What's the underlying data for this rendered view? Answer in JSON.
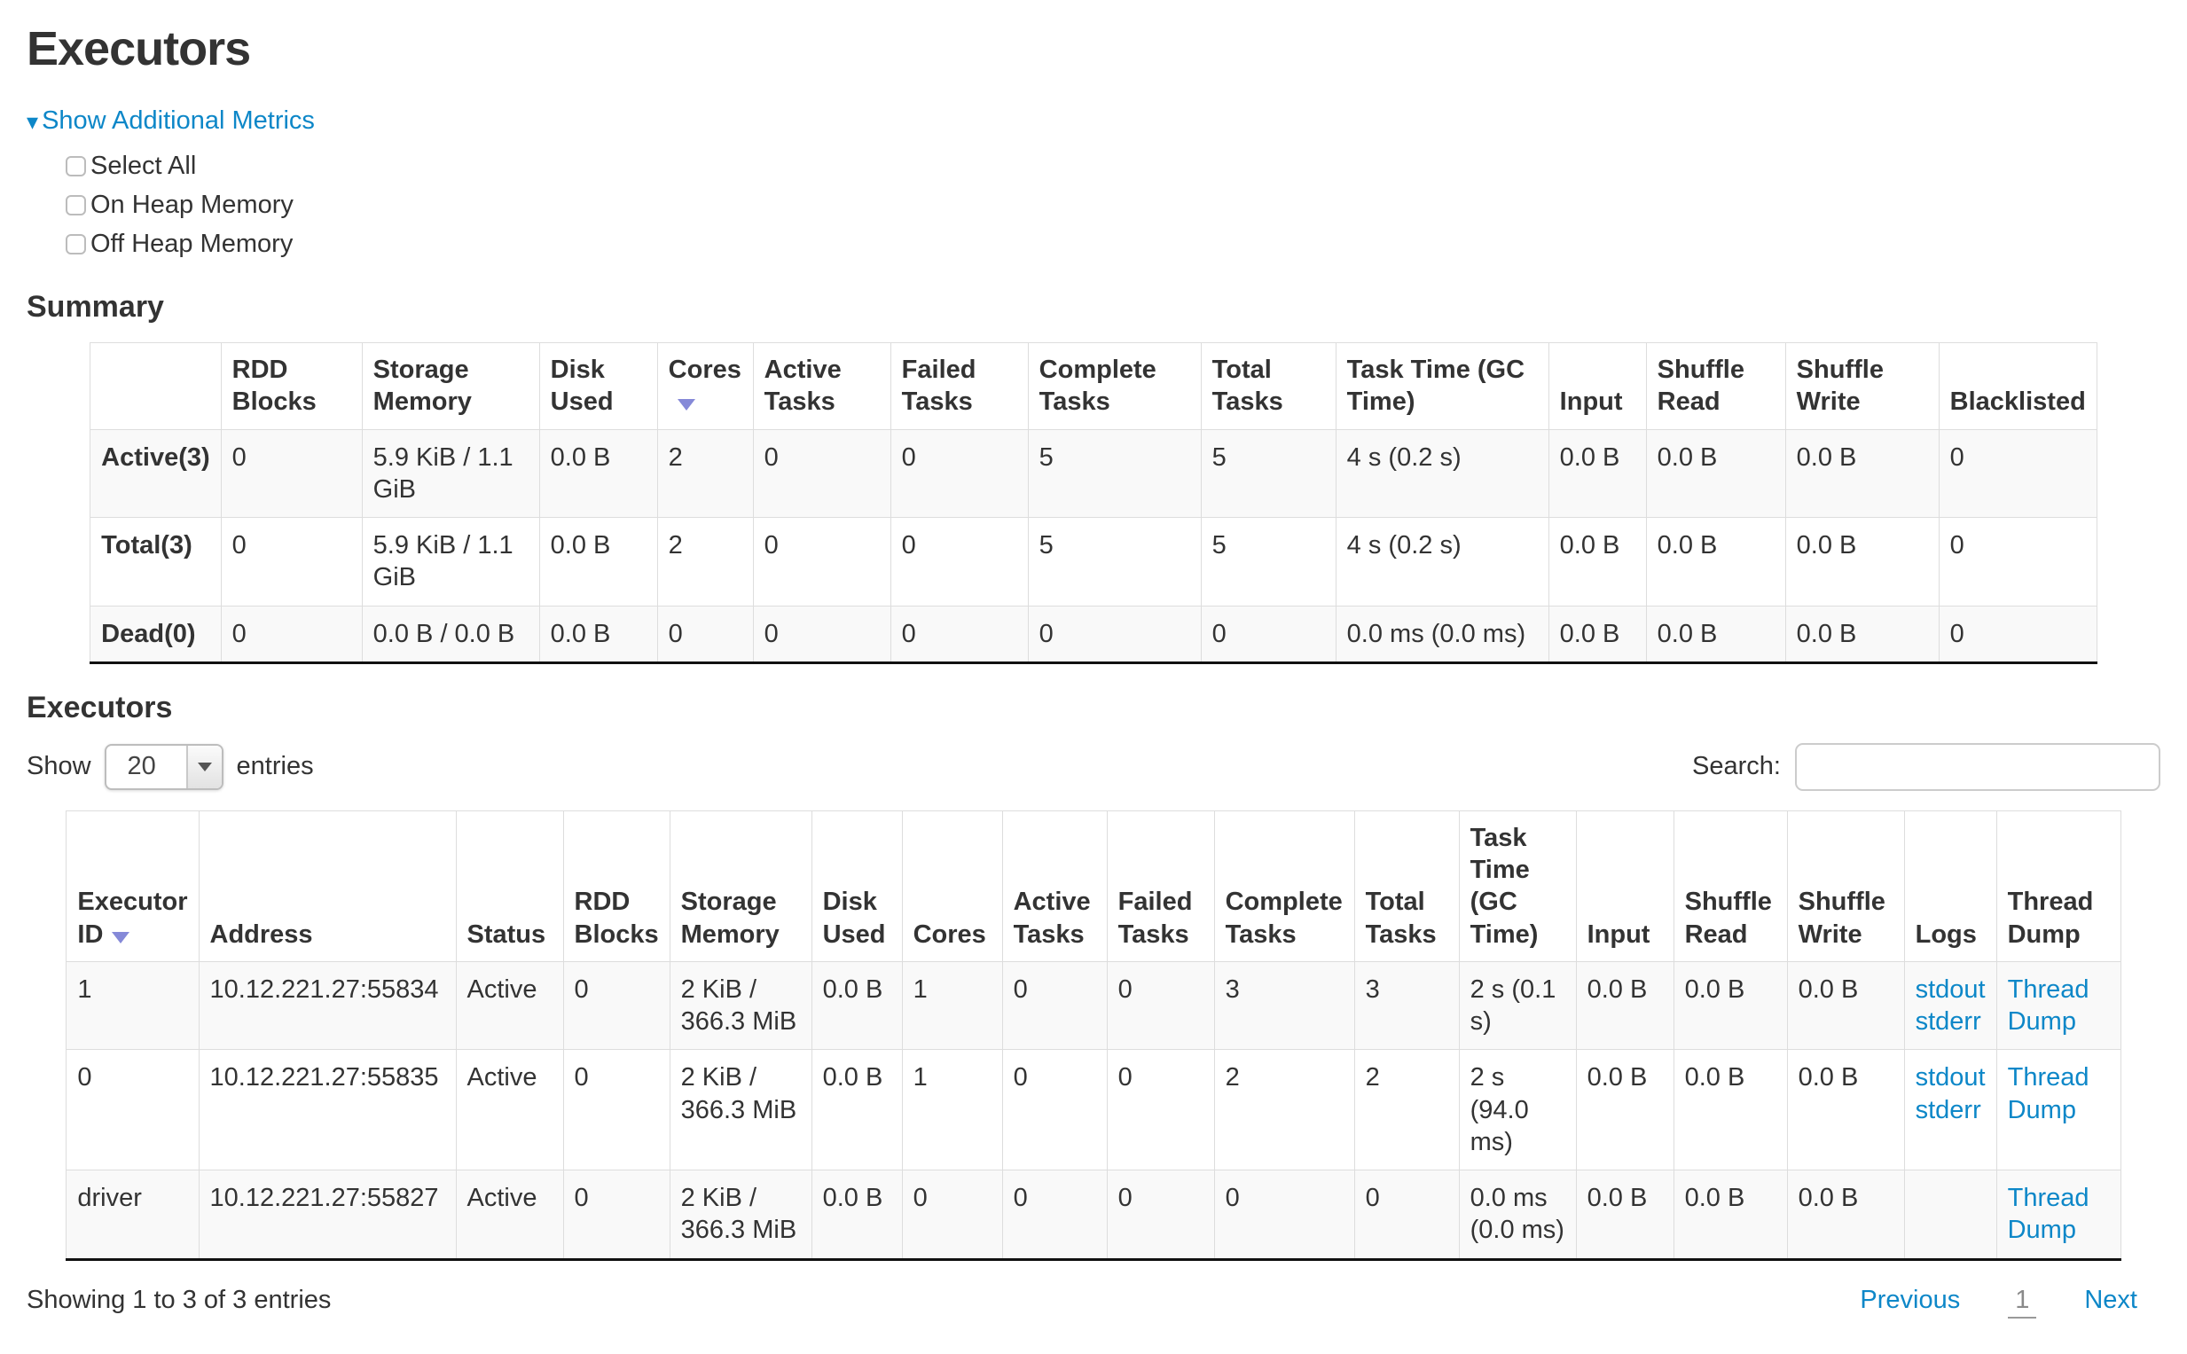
{
  "page": {
    "title": "Executors"
  },
  "colors": {
    "link": "#0d87c8",
    "sort_arrow": "#8589d8",
    "row_stripe": "#f9f9f9",
    "table_border": "#dddddd",
    "table_bottom_border": "#111111"
  },
  "metrics_toggle": {
    "collapse_arrow_icon": "▾",
    "label": "Show Additional Metrics",
    "checkboxes": [
      {
        "label": "Select All",
        "checked": false
      },
      {
        "label": "On Heap Memory",
        "checked": false
      },
      {
        "label": "Off Heap Memory",
        "checked": false
      }
    ]
  },
  "summary": {
    "heading": "Summary",
    "sorted_column": "Cores",
    "columns": [
      "",
      "RDD Blocks",
      "Storage Memory",
      "Disk Used",
      "Cores",
      "Active Tasks",
      "Failed Tasks",
      "Complete Tasks",
      "Total Tasks",
      "Task Time (GC Time)",
      "Input",
      "Shuffle Read",
      "Shuffle Write",
      "Blacklisted"
    ],
    "rows": [
      {
        "label": "Active(3)",
        "values": [
          "0",
          "5.9 KiB / 1.1 GiB",
          "0.0 B",
          "2",
          "0",
          "0",
          "5",
          "5",
          "4 s (0.2 s)",
          "0.0 B",
          "0.0 B",
          "0.0 B",
          "0"
        ]
      },
      {
        "label": "Total(3)",
        "values": [
          "0",
          "5.9 KiB / 1.1 GiB",
          "0.0 B",
          "2",
          "0",
          "0",
          "5",
          "5",
          "4 s (0.2 s)",
          "0.0 B",
          "0.0 B",
          "0.0 B",
          "0"
        ]
      },
      {
        "label": "Dead(0)",
        "values": [
          "0",
          "0.0 B / 0.0 B",
          "0.0 B",
          "0",
          "0",
          "0",
          "0",
          "0",
          "0.0 ms (0.0 ms)",
          "0.0 B",
          "0.0 B",
          "0.0 B",
          "0"
        ]
      }
    ]
  },
  "executors": {
    "heading": "Executors",
    "show_label": "Show",
    "page_size": "20",
    "entries_label": "entries",
    "search_label": "Search:",
    "search_value": "",
    "sorted_column": "Executor ID",
    "columns": [
      {
        "key": "executor_id",
        "label": "Executor ID"
      },
      {
        "key": "address",
        "label": "Address"
      },
      {
        "key": "status",
        "label": "Status"
      },
      {
        "key": "rdd_blocks",
        "label": "RDD Blocks"
      },
      {
        "key": "storage_memory",
        "label": "Storage Memory"
      },
      {
        "key": "disk_used",
        "label": "Disk Used"
      },
      {
        "key": "cores",
        "label": "Cores"
      },
      {
        "key": "active_tasks",
        "label": "Active Tasks"
      },
      {
        "key": "failed_tasks",
        "label": "Failed Tasks"
      },
      {
        "key": "complete_tasks",
        "label": "Complete Tasks"
      },
      {
        "key": "total_tasks",
        "label": "Total Tasks"
      },
      {
        "key": "task_time",
        "label": "Task Time (GC Time)"
      },
      {
        "key": "input",
        "label": "Input"
      },
      {
        "key": "shuffle_read",
        "label": "Shuffle Read"
      },
      {
        "key": "shuffle_write",
        "label": "Shuffle Write"
      },
      {
        "key": "logs",
        "label": "Logs"
      },
      {
        "key": "thread_dump",
        "label": "Thread Dump"
      }
    ],
    "rows": [
      {
        "executor_id": "1",
        "address": "10.12.221.27:55834",
        "status": "Active",
        "rdd_blocks": "0",
        "storage_memory": "2 KiB / 366.3 MiB",
        "disk_used": "0.0 B",
        "cores": "1",
        "active_tasks": "0",
        "failed_tasks": "0",
        "complete_tasks": "3",
        "total_tasks": "3",
        "task_time": "2 s (0.1 s)",
        "input": "0.0 B",
        "shuffle_read": "0.0 B",
        "shuffle_write": "0.0 B",
        "logs": [
          "stdout",
          "stderr"
        ],
        "thread_dump": "Thread Dump"
      },
      {
        "executor_id": "0",
        "address": "10.12.221.27:55835",
        "status": "Active",
        "rdd_blocks": "0",
        "storage_memory": "2 KiB / 366.3 MiB",
        "disk_used": "0.0 B",
        "cores": "1",
        "active_tasks": "0",
        "failed_tasks": "0",
        "complete_tasks": "2",
        "total_tasks": "2",
        "task_time": "2 s (94.0 ms)",
        "input": "0.0 B",
        "shuffle_read": "0.0 B",
        "shuffle_write": "0.0 B",
        "logs": [
          "stdout",
          "stderr"
        ],
        "thread_dump": "Thread Dump"
      },
      {
        "executor_id": "driver",
        "address": "10.12.221.27:55827",
        "status": "Active",
        "rdd_blocks": "0",
        "storage_memory": "2 KiB / 366.3 MiB",
        "disk_used": "0.0 B",
        "cores": "0",
        "active_tasks": "0",
        "failed_tasks": "0",
        "complete_tasks": "0",
        "total_tasks": "0",
        "task_time": "0.0 ms (0.0 ms)",
        "input": "0.0 B",
        "shuffle_read": "0.0 B",
        "shuffle_write": "0.0 B",
        "logs": [],
        "thread_dump": "Thread Dump"
      }
    ],
    "footer": {
      "info": "Showing 1 to 3 of 3 entries",
      "previous_label": "Previous",
      "current_page": "1",
      "next_label": "Next"
    }
  }
}
